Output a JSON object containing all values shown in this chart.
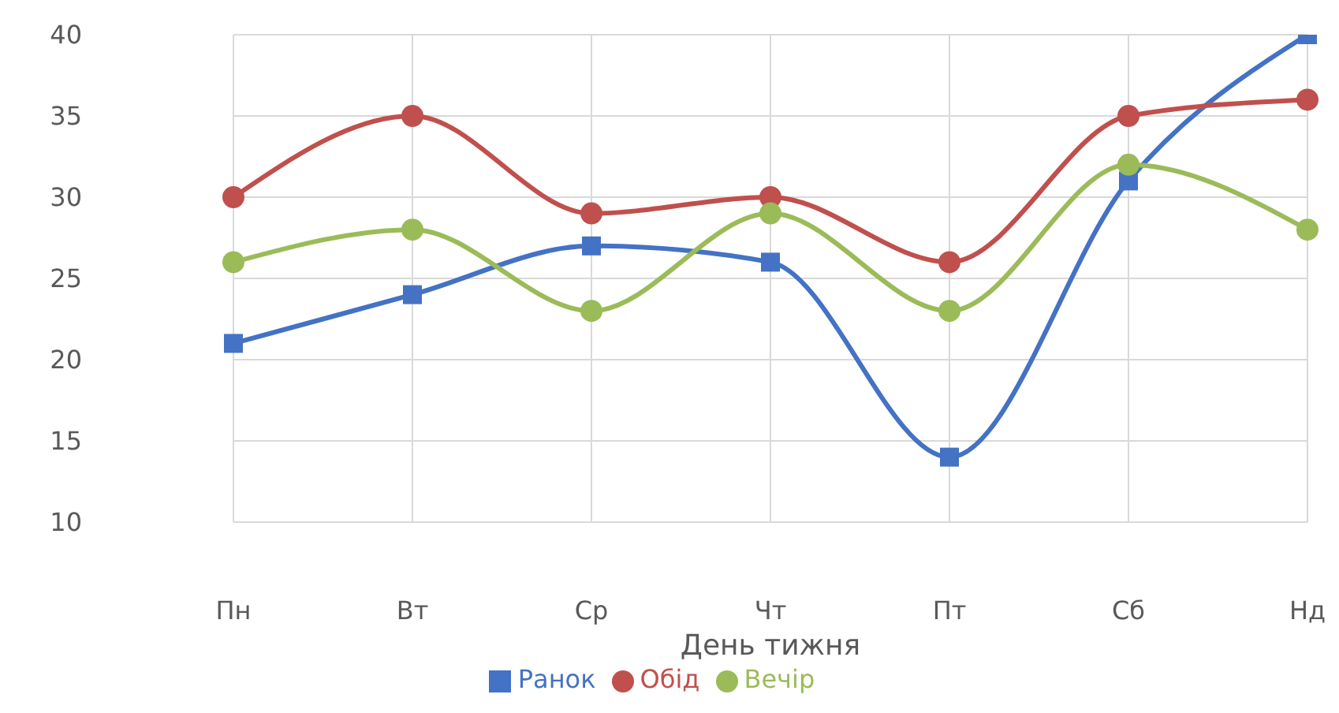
{
  "chart_data": {
    "type": "line",
    "xlabel": "День тижня",
    "categories": [
      "Пн",
      "Вт",
      "Ср",
      "Чт",
      "Пт",
      "Сб",
      "Нд"
    ],
    "series": [
      {
        "name": "Ранок",
        "color": "#4472c4",
        "marker": "square",
        "values": [
          21,
          24,
          27,
          26,
          14,
          31,
          40
        ]
      },
      {
        "name": "Обід",
        "color": "#c0504d",
        "marker": "circle",
        "values": [
          30,
          35,
          29,
          30,
          26,
          35,
          36
        ]
      },
      {
        "name": "Вечір",
        "color": "#9bbb59",
        "marker": "circle",
        "values": [
          26,
          28,
          23,
          29,
          23,
          32,
          28
        ]
      }
    ],
    "ylim": [
      10,
      40
    ],
    "yticks": [
      10,
      15,
      20,
      25,
      30,
      35,
      40
    ],
    "grid": true,
    "legend": "bottom"
  }
}
